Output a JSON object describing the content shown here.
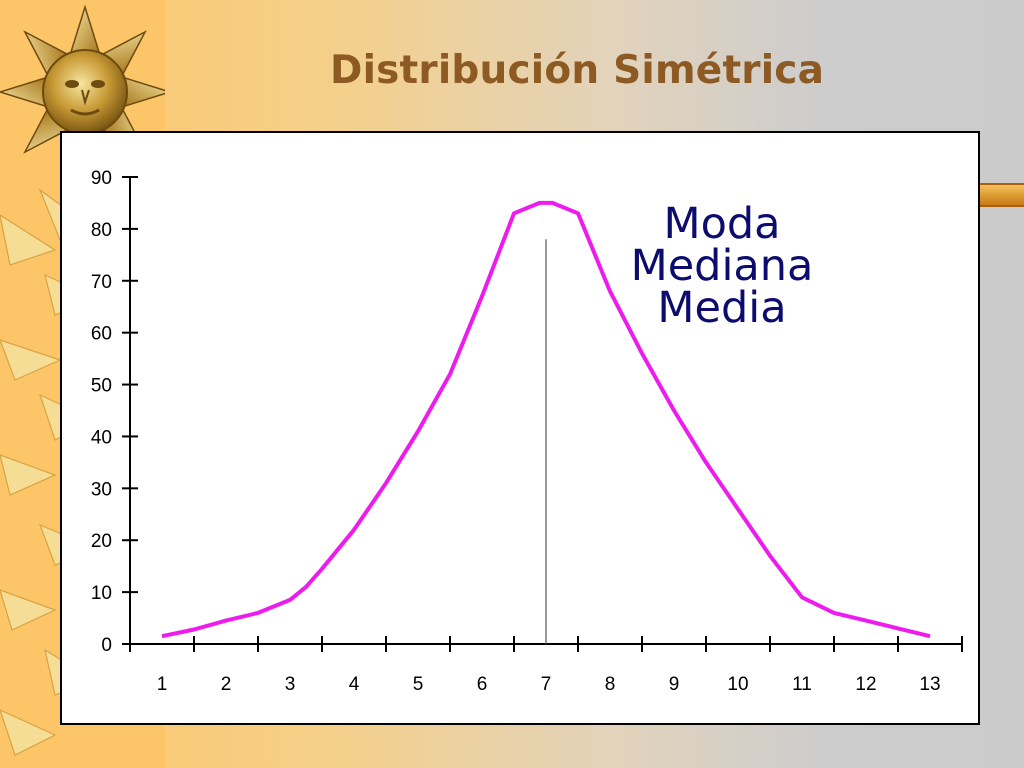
{
  "slide": {
    "title": "Distribución Simétrica",
    "decoration_icon": "sun-icon",
    "colors": {
      "background_left": "#fcc568",
      "background_right": "#cbcbcb",
      "title": "#8d5a23",
      "curve": "#ee1bee",
      "annotation": "#0c0c6e"
    }
  },
  "chart_data": {
    "type": "line",
    "x": [
      1,
      1.5,
      2,
      2.5,
      3,
      3.25,
      3.5,
      4,
      4.5,
      5,
      5.5,
      6,
      6.5,
      6.9,
      7,
      7.1,
      7.5,
      8,
      8.5,
      9,
      9.5,
      10,
      10.5,
      11,
      11.5,
      12,
      12.5,
      13
    ],
    "y": [
      1.5,
      2.8,
      4.5,
      6,
      8.5,
      11,
      14.5,
      22,
      31,
      41,
      52,
      67,
      83,
      85,
      85,
      85,
      83,
      68,
      56,
      45,
      35,
      26,
      17,
      9,
      6,
      4.5,
      3,
      1.5
    ],
    "categories": [
      "1",
      "2",
      "3",
      "4",
      "5",
      "6",
      "7",
      "8",
      "9",
      "10",
      "11",
      "12",
      "13"
    ],
    "ylim": [
      0,
      90
    ],
    "yticks": [
      "0",
      "10",
      "20",
      "30",
      "40",
      "50",
      "60",
      "70",
      "80",
      "90"
    ],
    "grid": false,
    "vline_x": 7,
    "annotation": {
      "lines": [
        "Moda",
        "Mediana",
        "Media"
      ]
    }
  }
}
